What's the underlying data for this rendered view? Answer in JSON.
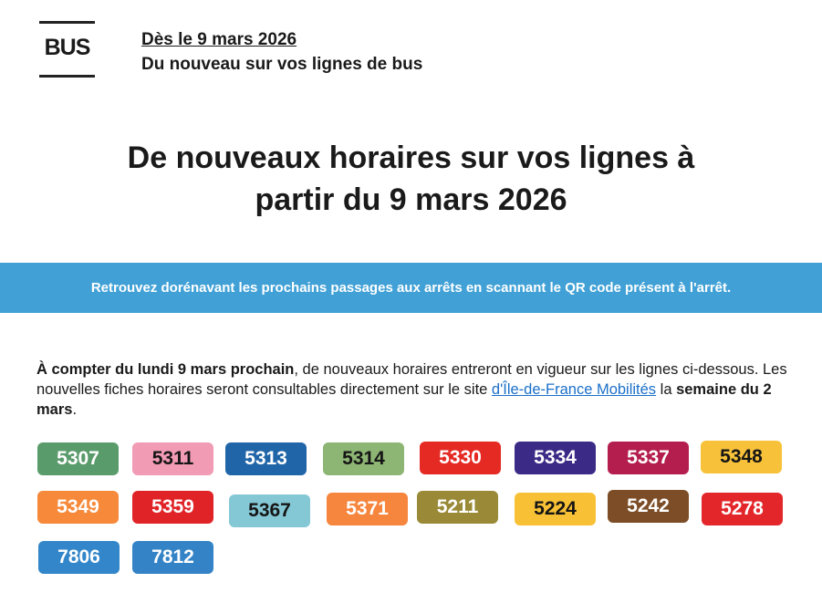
{
  "header": {
    "logo": "BUS",
    "date": "Dès le 9 mars 2026",
    "subtitle": "Du nouveau sur vos lignes de bus"
  },
  "title_line1": "De nouveaux horaires sur vos lignes à",
  "title_line2": "partir du 9 mars 2026",
  "banner": "Retrouvez dorénavant les prochains passages aux arrêts en scannant le QR code présent à l'arrêt.",
  "paragraph": {
    "bold1": "À compter du lundi 9 mars prochain",
    "text1": ", de nouveaux horaires entreront en vigueur sur les lignes ci-dessous. Les nouvelles fiches horaires seront consultables directement sur le site ",
    "link": "d'Île-de-France Mobilités",
    "text2": " la ",
    "bold2": "semaine du 2 mars",
    "text3": "."
  },
  "lines": [
    {
      "label": "5307",
      "color": "#5a9b6c",
      "text": "light"
    },
    {
      "label": "5311",
      "color": "#f19bb5",
      "text": "dark"
    },
    {
      "label": "5313",
      "color": "#1f65a8",
      "text": "light"
    },
    {
      "label": "5314",
      "color": "#8db574",
      "text": "dark"
    },
    {
      "label": "5330",
      "color": "#e52a24",
      "text": "light"
    },
    {
      "label": "5334",
      "color": "#3b2a86",
      "text": "light"
    },
    {
      "label": "5337",
      "color": "#b41e4f",
      "text": "light"
    },
    {
      "label": "5348",
      "color": "#f7c23a",
      "text": "dark"
    },
    {
      "label": "5349",
      "color": "#f6893a",
      "text": "light"
    },
    {
      "label": "5359",
      "color": "#e02327",
      "text": "light"
    },
    {
      "label": "5367",
      "color": "#85c8d5",
      "text": "dark"
    },
    {
      "label": "5371",
      "color": "#f6853d",
      "text": "light"
    },
    {
      "label": "5211",
      "color": "#9a8a37",
      "text": "light"
    },
    {
      "label": "5224",
      "color": "#f8c135",
      "text": "dark"
    },
    {
      "label": "5242",
      "color": "#7c4d27",
      "text": "light"
    },
    {
      "label": "5278",
      "color": "#e3262a",
      "text": "light"
    },
    {
      "label": "7806",
      "color": "#3286c9",
      "text": "light"
    },
    {
      "label": "7812",
      "color": "#3383c6",
      "text": "light"
    }
  ]
}
